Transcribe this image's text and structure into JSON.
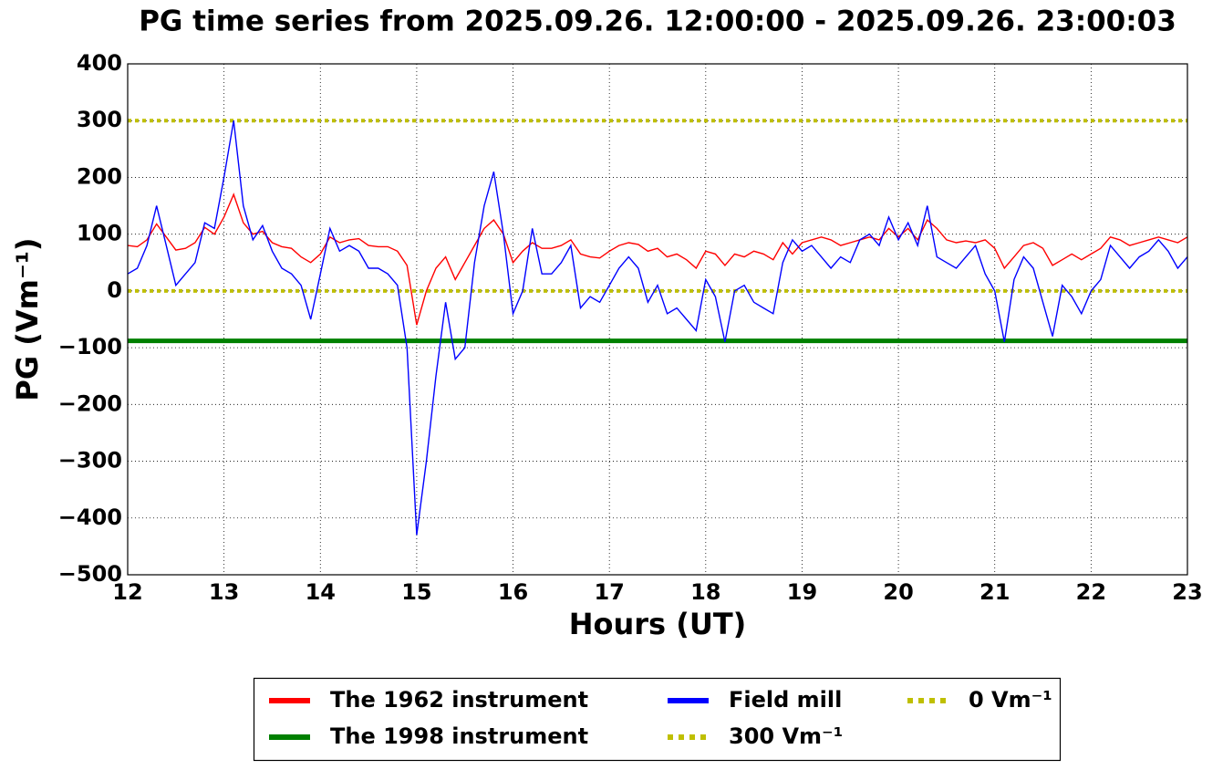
{
  "chart_data": {
    "type": "line",
    "title": "PG time series from 2025.09.26. 12:00:00 - 2025.09.26. 23:00:03",
    "xlabel": "Hours (UT)",
    "ylabel": "PG (Vm⁻¹)",
    "xlim": [
      12,
      23
    ],
    "ylim": [
      -500,
      400
    ],
    "xticks": [
      12,
      13,
      14,
      15,
      16,
      17,
      18,
      19,
      20,
      21,
      22,
      23
    ],
    "yticks": [
      {
        "value": -500,
        "label": "−500"
      },
      {
        "value": -400,
        "label": "−400"
      },
      {
        "value": -300,
        "label": "−300"
      },
      {
        "value": -200,
        "label": "−200"
      },
      {
        "value": -100,
        "label": "−100"
      },
      0,
      100,
      200,
      300,
      400
    ],
    "grid": true,
    "legend": "below",
    "x": [
      12.0,
      12.1,
      12.2,
      12.3,
      12.4,
      12.5,
      12.6,
      12.7,
      12.8,
      12.9,
      13.0,
      13.1,
      13.2,
      13.3,
      13.4,
      13.5,
      13.6,
      13.7,
      13.8,
      13.9,
      14.0,
      14.1,
      14.2,
      14.3,
      14.4,
      14.5,
      14.6,
      14.7,
      14.8,
      14.9,
      15.0,
      15.1,
      15.2,
      15.3,
      15.4,
      15.5,
      15.6,
      15.7,
      15.8,
      15.9,
      16.0,
      16.1,
      16.2,
      16.3,
      16.4,
      16.5,
      16.6,
      16.7,
      16.8,
      16.9,
      17.0,
      17.1,
      17.2,
      17.3,
      17.4,
      17.5,
      17.6,
      17.7,
      17.8,
      17.9,
      18.0,
      18.1,
      18.2,
      18.3,
      18.4,
      18.5,
      18.6,
      18.7,
      18.8,
      18.9,
      19.0,
      19.1,
      19.2,
      19.3,
      19.4,
      19.5,
      19.6,
      19.7,
      19.8,
      19.9,
      20.0,
      20.1,
      20.2,
      20.3,
      20.4,
      20.5,
      20.6,
      20.7,
      20.8,
      20.9,
      21.0,
      21.1,
      21.2,
      21.3,
      21.4,
      21.5,
      21.6,
      21.7,
      21.8,
      21.9,
      22.0,
      22.1,
      22.2,
      22.3,
      22.4,
      22.5,
      22.6,
      22.7,
      22.8,
      22.9,
      23.0
    ],
    "series": [
      {
        "name": "The 1962 instrument",
        "color": "#ff0000",
        "values": [
          80,
          78,
          90,
          118,
          95,
          72,
          75,
          85,
          112,
          100,
          130,
          170,
          120,
          100,
          105,
          85,
          78,
          75,
          60,
          50,
          65,
          95,
          85,
          90,
          92,
          80,
          78,
          78,
          70,
          45,
          -60,
          0,
          40,
          60,
          20,
          50,
          80,
          110,
          125,
          100,
          50,
          70,
          85,
          75,
          75,
          80,
          90,
          65,
          60,
          58,
          70,
          80,
          85,
          82,
          70,
          75,
          60,
          65,
          55,
          40,
          70,
          65,
          45,
          65,
          60,
          70,
          65,
          55,
          85,
          65,
          85,
          90,
          95,
          90,
          80,
          85,
          90,
          95,
          90,
          110,
          95,
          110,
          90,
          125,
          110,
          90,
          85,
          88,
          85,
          90,
          75,
          40,
          60,
          80,
          85,
          75,
          45,
          55,
          65,
          55,
          65,
          75,
          95,
          90,
          80,
          85,
          90,
          95,
          90,
          85,
          95
        ]
      },
      {
        "name": "The 1998 instrument",
        "color": "#008000",
        "x": [
          12,
          23
        ],
        "values": [
          -88,
          -88
        ]
      },
      {
        "name": "Field mill",
        "color": "#0000ff",
        "values": [
          30,
          40,
          80,
          150,
          80,
          10,
          30,
          50,
          120,
          110,
          200,
          300,
          150,
          90,
          115,
          70,
          40,
          30,
          10,
          -50,
          30,
          110,
          70,
          80,
          70,
          40,
          40,
          30,
          10,
          -100,
          -430,
          -300,
          -150,
          -20,
          -120,
          -100,
          50,
          150,
          210,
          100,
          -40,
          0,
          110,
          30,
          30,
          50,
          80,
          -30,
          -10,
          -20,
          10,
          40,
          60,
          40,
          -20,
          10,
          -40,
          -30,
          -50,
          -70,
          20,
          -10,
          -90,
          0,
          10,
          -20,
          -30,
          -40,
          50,
          90,
          70,
          80,
          60,
          40,
          60,
          50,
          90,
          100,
          80,
          130,
          90,
          120,
          80,
          150,
          60,
          50,
          40,
          60,
          80,
          30,
          0,
          -90,
          20,
          60,
          40,
          -20,
          -80,
          10,
          -10,
          -40,
          0,
          20,
          80,
          60,
          40,
          60,
          70,
          90,
          70,
          40,
          60
        ]
      }
    ],
    "hlines": [
      {
        "name": "300 Vm⁻¹",
        "value": 300,
        "color": "#bfbf00"
      },
      {
        "name": "0 Vm⁻¹",
        "value": 0,
        "color": "#bfbf00"
      }
    ]
  }
}
